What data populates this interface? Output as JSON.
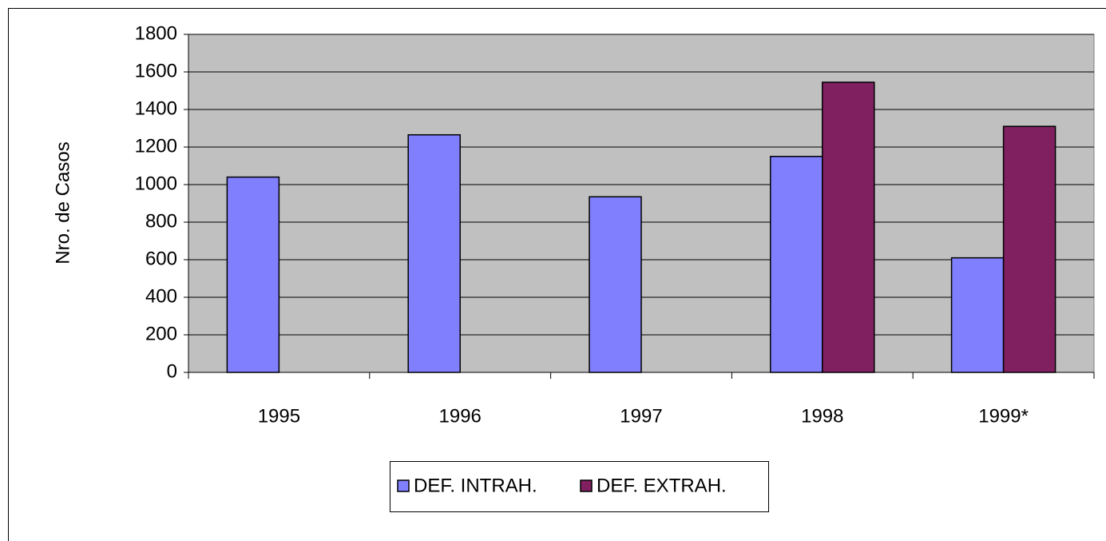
{
  "chart_data": {
    "type": "bar",
    "y_label": "Nro. de Casos",
    "categories": [
      "1995",
      "1996",
      "1997",
      "1998",
      "1999*"
    ],
    "series": [
      {
        "name": "DEF. INTRAH.",
        "color": "#8080ff",
        "values": [
          1040,
          1265,
          935,
          1150,
          610
        ]
      },
      {
        "name": "DEF. EXTRAH.",
        "color": "#802060",
        "values": [
          null,
          null,
          null,
          1545,
          1310
        ]
      }
    ],
    "ylim": [
      0,
      1800
    ],
    "yticks": [
      0,
      200,
      400,
      600,
      800,
      1000,
      1200,
      1400,
      1600,
      1800
    ],
    "grid": true,
    "legend": "bottom"
  }
}
